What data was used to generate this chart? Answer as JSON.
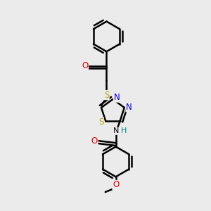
{
  "bg_color": "#ebebeb",
  "atom_colors": {
    "C": "#000000",
    "N": "#0000ee",
    "O": "#ee0000",
    "S": "#bbaa00",
    "H": "#008888"
  },
  "bond_color": "#000000",
  "bond_width": 1.8,
  "figsize": [
    3.0,
    3.0
  ],
  "dpi": 100,
  "xlim": [
    0,
    10
  ],
  "ylim": [
    0,
    10
  ]
}
